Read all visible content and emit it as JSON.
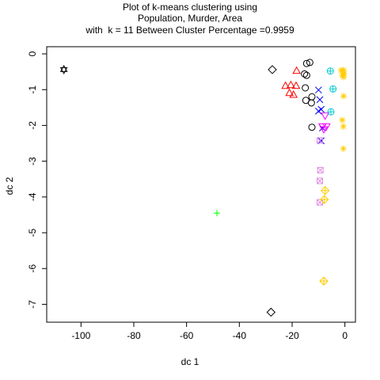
{
  "chart_data": {
    "type": "scatter",
    "title_lines": [
      "Plot of k-means clustering using",
      "Population, Murder, Area",
      "with  k = 11 Between Cluster Percentage =0.9959"
    ],
    "xlabel": "dc 1",
    "ylabel": "dc 2",
    "xlim": [
      -113,
      4
    ],
    "ylim": [
      -7.5,
      0.2
    ],
    "xticks": [
      -100,
      -80,
      -60,
      -40,
      -20,
      0
    ],
    "yticks": [
      0,
      -1,
      -2,
      -3,
      -4,
      -5,
      -6,
      -7
    ],
    "grid": false,
    "legend": "none",
    "series": [
      {
        "symbol": "circle",
        "color": "#000000",
        "points": [
          [
            -14.5,
            -0.27
          ],
          [
            -13.3,
            -0.24
          ],
          [
            -15.3,
            -0.56
          ],
          [
            -14.5,
            -0.6
          ],
          [
            -15.0,
            -0.95
          ],
          [
            -12.5,
            -1.2
          ],
          [
            -14.8,
            -1.3
          ],
          [
            -12.7,
            -1.37
          ],
          [
            -12.5,
            -2.05
          ]
        ]
      },
      {
        "symbol": "triangle",
        "color": "#ff0000",
        "points": [
          [
            -18.3,
            -0.48
          ],
          [
            -22.5,
            -0.9
          ],
          [
            -20.5,
            -0.88
          ],
          [
            -18.5,
            -0.9
          ],
          [
            -21.0,
            -1.1
          ],
          [
            -19.5,
            -1.15
          ]
        ]
      },
      {
        "symbol": "plus",
        "color": "#00ff00",
        "points": [
          [
            -48.5,
            -4.45
          ]
        ]
      },
      {
        "symbol": "x",
        "color": "#0000ff",
        "points": [
          [
            -10.0,
            -1.01
          ],
          [
            -9.5,
            -1.28
          ],
          [
            -9.0,
            -1.55
          ],
          [
            -10.0,
            -1.6
          ],
          [
            -8.5,
            -2.07
          ],
          [
            -9.0,
            -2.43
          ]
        ]
      },
      {
        "symbol": "diamond",
        "color": "#000000",
        "points": [
          [
            -27.5,
            -0.44
          ],
          [
            -28.0,
            -7.22
          ]
        ]
      },
      {
        "symbol": "triangle-down",
        "color": "#ff00ff",
        "points": [
          [
            -7.5,
            -1.72
          ],
          [
            -7.0,
            -2.02
          ],
          [
            -8.5,
            -2.02
          ],
          [
            -8.0,
            -2.1
          ]
        ]
      },
      {
        "symbol": "box-x",
        "color": "#e08ee0",
        "points": [
          [
            -9.5,
            -2.42
          ],
          [
            -9.3,
            -3.25
          ],
          [
            -9.5,
            -3.55
          ],
          [
            -9.5,
            -4.15
          ]
        ]
      },
      {
        "symbol": "asterisk",
        "color": "#ffcc00",
        "points": [
          [
            -1.5,
            -0.46
          ],
          [
            -0.5,
            -0.45
          ],
          [
            -0.5,
            -0.55
          ],
          [
            -1.0,
            -0.6
          ],
          [
            -0.3,
            -0.55
          ],
          [
            -0.5,
            -0.65
          ],
          [
            -0.5,
            -1.18
          ],
          [
            -1.0,
            -1.85
          ],
          [
            -0.6,
            -2.03
          ],
          [
            -0.6,
            -2.65
          ]
        ]
      },
      {
        "symbol": "diamond-plus",
        "color": "#ffcc00",
        "points": [
          [
            -7.5,
            -3.82
          ],
          [
            -7.8,
            -4.07
          ],
          [
            -8.0,
            -6.35
          ]
        ]
      },
      {
        "symbol": "circle-plus",
        "color": "#00cccc",
        "points": [
          [
            -5.5,
            -0.48
          ],
          [
            -4.5,
            -0.98
          ],
          [
            -5.3,
            -1.62
          ]
        ]
      },
      {
        "symbol": "star-of-david",
        "color": "#000000",
        "points": [
          [
            -106.5,
            -0.44
          ]
        ]
      }
    ]
  }
}
